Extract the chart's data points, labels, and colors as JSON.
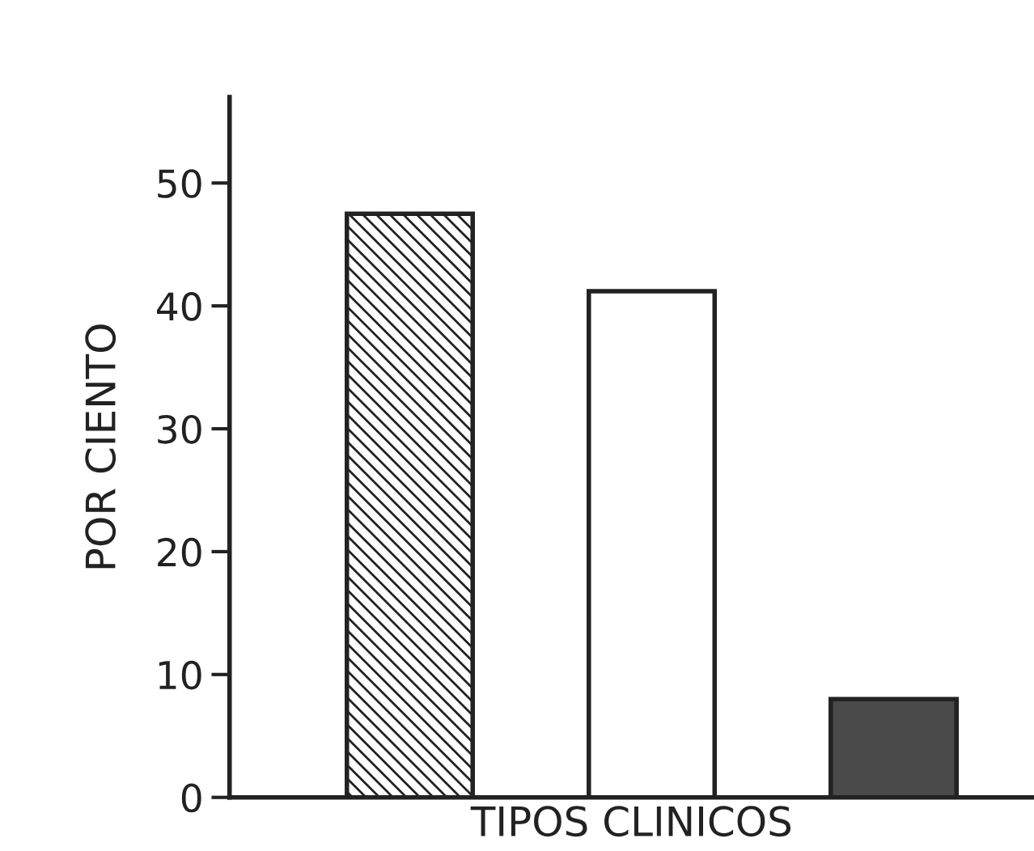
{
  "chart_data": {
    "type": "bar",
    "xlabel": "TIPOS CLINICOS",
    "ylabel": "POR CIENTO",
    "categories": [
      null,
      null,
      null
    ],
    "values": [
      47.5,
      41.2,
      8
    ],
    "colors": [
      "#222222",
      "#ffffff",
      "#4a4a4a"
    ],
    "ylim": [
      0,
      57
    ],
    "yticks": [
      0,
      10,
      20,
      30,
      40,
      50
    ],
    "grid": false,
    "legend": false
  }
}
